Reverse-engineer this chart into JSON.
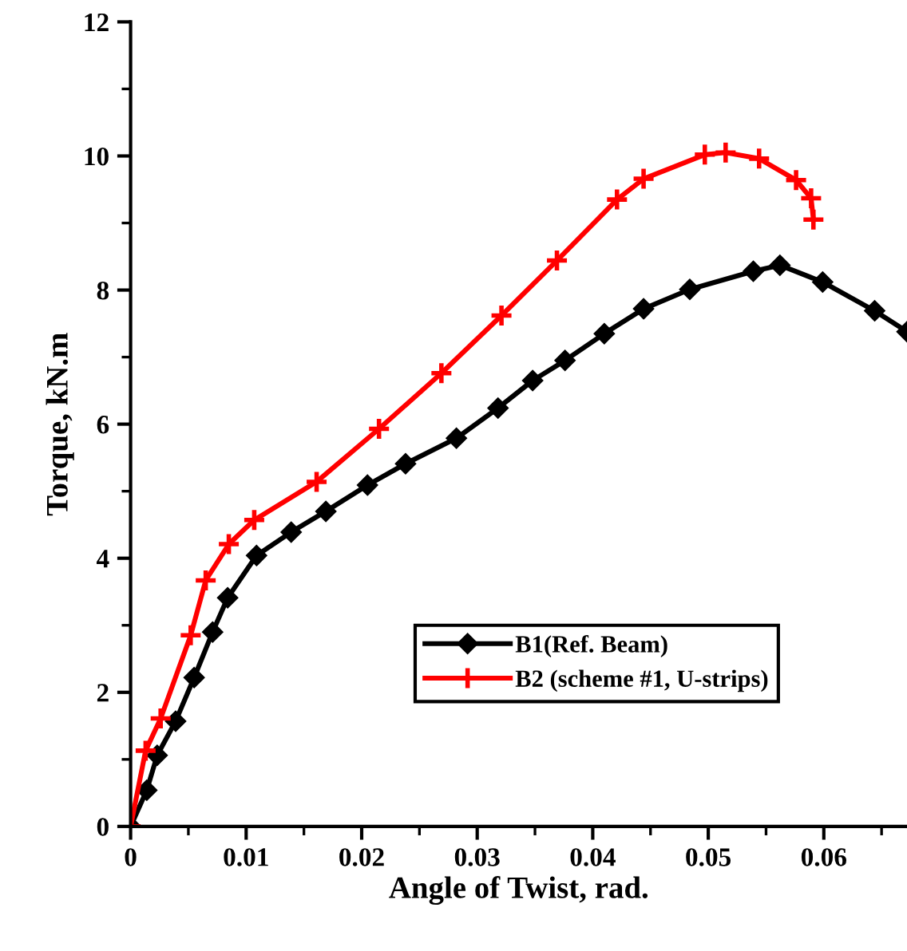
{
  "chart_data": {
    "type": "line",
    "xlabel": "Angle of Twist, rad.",
    "ylabel": "Torque, kN.m",
    "xlim": [
      0,
      0.0672
    ],
    "xticks": [
      0,
      0.01,
      0.02,
      0.03,
      0.04,
      0.05,
      0.06
    ],
    "ylim": [
      0,
      12
    ],
    "yticks": [
      0,
      2,
      4,
      6,
      8,
      10,
      12
    ],
    "grid": false,
    "legend": "bottom right",
    "line_style": "solid",
    "series": [
      {
        "name": "B1(Ref. Beam)",
        "color": "#000000",
        "marker": "diamond",
        "x": [
          0,
          0.0014,
          0.0023,
          0.0039,
          0.0055,
          0.0071,
          0.0084,
          0.0109,
          0.0139,
          0.0169,
          0.0205,
          0.0238,
          0.0282,
          0.0318,
          0.0348,
          0.0376,
          0.041,
          0.0444,
          0.0484,
          0.0539,
          0.0562,
          0.0599,
          0.0644,
          0.0672
        ],
        "values": [
          0,
          0.54,
          1.06,
          1.57,
          2.22,
          2.9,
          3.41,
          4.04,
          4.39,
          4.7,
          5.09,
          5.41,
          5.79,
          6.24,
          6.65,
          6.95,
          7.35,
          7.72,
          8.01,
          8.28,
          8.37,
          8.12,
          7.69,
          7.38
        ]
      },
      {
        "name": "B2 (scheme #1, U-strips)",
        "color": "#ff0000",
        "marker": "cross",
        "x": [
          0,
          0.0013,
          0.0026,
          0.0052,
          0.0065,
          0.0085,
          0.0107,
          0.0161,
          0.0215,
          0.0269,
          0.0321,
          0.0369,
          0.0421,
          0.0444,
          0.0497,
          0.0515,
          0.0544,
          0.0576,
          0.0589,
          0.0591
        ],
        "values": [
          0,
          1.13,
          1.61,
          2.85,
          3.67,
          4.21,
          4.57,
          5.14,
          5.93,
          6.76,
          7.62,
          8.44,
          9.35,
          9.66,
          10.02,
          10.05,
          9.96,
          9.64,
          9.37,
          9.05
        ]
      }
    ]
  }
}
